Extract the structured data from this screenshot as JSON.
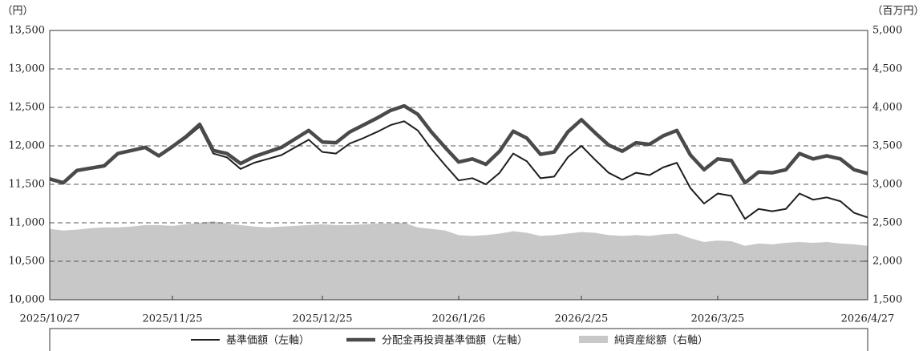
{
  "chart_data": {
    "type": "line",
    "y_label": "（円）",
    "y2_label": "（百万円）",
    "categories": [
      "2025/10/27",
      null,
      null,
      null,
      null,
      null,
      null,
      null,
      null,
      "2025/11/25",
      null,
      null,
      null,
      null,
      null,
      null,
      null,
      null,
      null,
      null,
      "2025/12/25",
      null,
      null,
      null,
      null,
      null,
      null,
      null,
      null,
      null,
      "2026/1/26",
      null,
      null,
      null,
      null,
      null,
      null,
      null,
      null,
      "2026/2/25",
      null,
      null,
      null,
      null,
      null,
      null,
      null,
      null,
      null,
      "2026/3/25",
      null,
      null,
      null,
      null,
      null,
      null,
      null,
      null,
      null,
      null,
      "2026/4/27"
    ],
    "ylim": [
      10000,
      13500
    ],
    "yticks": [
      {
        "value": 10000,
        "label": "10,000"
      },
      {
        "value": 10500,
        "label": "10,500"
      },
      {
        "value": 11000,
        "label": "11,000"
      },
      {
        "value": 11500,
        "label": "11,500"
      },
      {
        "value": 12000,
        "label": "12,000"
      },
      {
        "value": 12500,
        "label": "12,500"
      },
      {
        "value": 13000,
        "label": "13,000"
      },
      {
        "value": 13500,
        "label": "13,500"
      }
    ],
    "y2lim": [
      1500,
      5000
    ],
    "y2ticks": [
      {
        "value": 1500,
        "label": "1,500"
      },
      {
        "value": 2000,
        "label": "2,000"
      },
      {
        "value": 2500,
        "label": "2,500"
      },
      {
        "value": 3000,
        "label": "3,000"
      },
      {
        "value": 3500,
        "label": "3,500"
      },
      {
        "value": 4000,
        "label": "4,000"
      },
      {
        "value": 4500,
        "label": "4,500"
      },
      {
        "value": 5000,
        "label": "5,000"
      }
    ],
    "grid": true,
    "series": [
      {
        "name": "基準価額（左軸）",
        "color": "#1e1e1e",
        "width": 2,
        "values": [
          11570,
          11520,
          11680,
          11710,
          11740,
          11900,
          11940,
          11980,
          11870,
          11980,
          12100,
          12250,
          11900,
          11850,
          11700,
          11780,
          11830,
          11880,
          11980,
          12080,
          11920,
          11900,
          12030,
          12100,
          12180,
          12270,
          12320,
          12200,
          11960,
          11750,
          11550,
          11580,
          11500,
          11650,
          11900,
          11800,
          11580,
          11600,
          11850,
          12000,
          11820,
          11650,
          11560,
          11650,
          11620,
          11720,
          11780,
          11450,
          11250,
          11380,
          11350,
          11050,
          11180,
          11150,
          11180,
          11380,
          11300,
          11330,
          11280,
          11130,
          11070
        ]
      },
      {
        "name": "分配金再投資基準価額（左軸）",
        "color": "#4a4a4a",
        "width": 4.5,
        "values": [
          11570,
          11520,
          11680,
          11710,
          11740,
          11900,
          11940,
          11980,
          11870,
          11990,
          12120,
          12280,
          11940,
          11900,
          11770,
          11860,
          11920,
          11980,
          12090,
          12200,
          12050,
          12040,
          12180,
          12270,
          12360,
          12460,
          12520,
          12410,
          12180,
          11980,
          11790,
          11830,
          11760,
          11930,
          12190,
          12100,
          11890,
          11920,
          12180,
          12340,
          12170,
          12010,
          11930,
          12040,
          12020,
          12130,
          12200,
          11880,
          11690,
          11830,
          11810,
          11520,
          11660,
          11650,
          11690,
          11900,
          11830,
          11870,
          11830,
          11690,
          11640
        ]
      },
      {
        "name": "純資産総額（右軸）",
        "color": "#c8c8c8",
        "kind": "area",
        "axis": "y2",
        "values": [
          2420,
          2400,
          2410,
          2430,
          2440,
          2440,
          2450,
          2470,
          2470,
          2460,
          2480,
          2500,
          2520,
          2490,
          2470,
          2450,
          2440,
          2450,
          2460,
          2470,
          2480,
          2470,
          2470,
          2480,
          2490,
          2490,
          2500,
          2440,
          2420,
          2400,
          2340,
          2330,
          2340,
          2360,
          2390,
          2370,
          2330,
          2340,
          2360,
          2380,
          2370,
          2340,
          2330,
          2340,
          2330,
          2350,
          2360,
          2300,
          2250,
          2270,
          2260,
          2200,
          2230,
          2220,
          2240,
          2250,
          2240,
          2250,
          2230,
          2220,
          2200
        ]
      }
    ]
  }
}
